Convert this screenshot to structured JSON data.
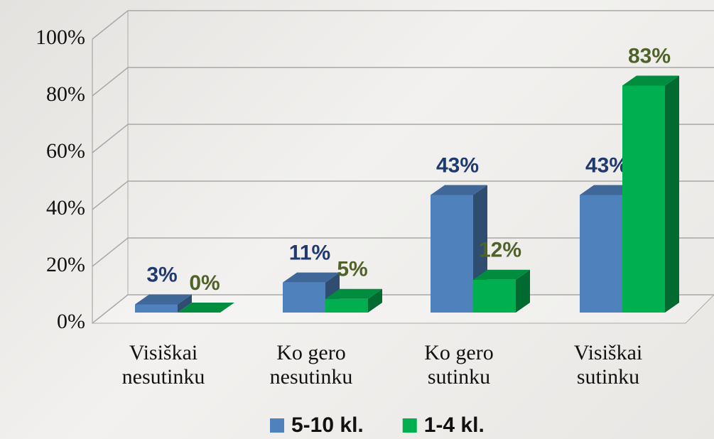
{
  "chart_data": {
    "type": "bar3d",
    "categories": [
      "Visiškai nesutinku",
      "Ko gero nesutinku",
      "Ko gero sutinku",
      "Visiškai sutinku"
    ],
    "series": [
      {
        "name": "5-10 kl.",
        "color": "#4f81bd",
        "label_color": "#1f3a6e",
        "values": [
          3,
          11,
          43,
          43
        ],
        "value_labels": [
          "3%",
          "11%",
          "43%",
          "43%"
        ]
      },
      {
        "name": "1-4 kl.",
        "color": "#00b050",
        "label_color": "#4f6228",
        "values": [
          0,
          5,
          12,
          83
        ],
        "value_labels": [
          "0%",
          "5%",
          "12%",
          "83%"
        ]
      }
    ],
    "ylim": [
      0,
      100
    ],
    "yticks": [
      {
        "value": 0,
        "label": "0%"
      },
      {
        "value": 20,
        "label": "20%"
      },
      {
        "value": 40,
        "label": "40%"
      },
      {
        "value": 60,
        "label": "60%"
      },
      {
        "value": 80,
        "label": "80%"
      },
      {
        "value": 100,
        "label": "100%"
      }
    ],
    "grid": true,
    "legend": "bottom"
  }
}
